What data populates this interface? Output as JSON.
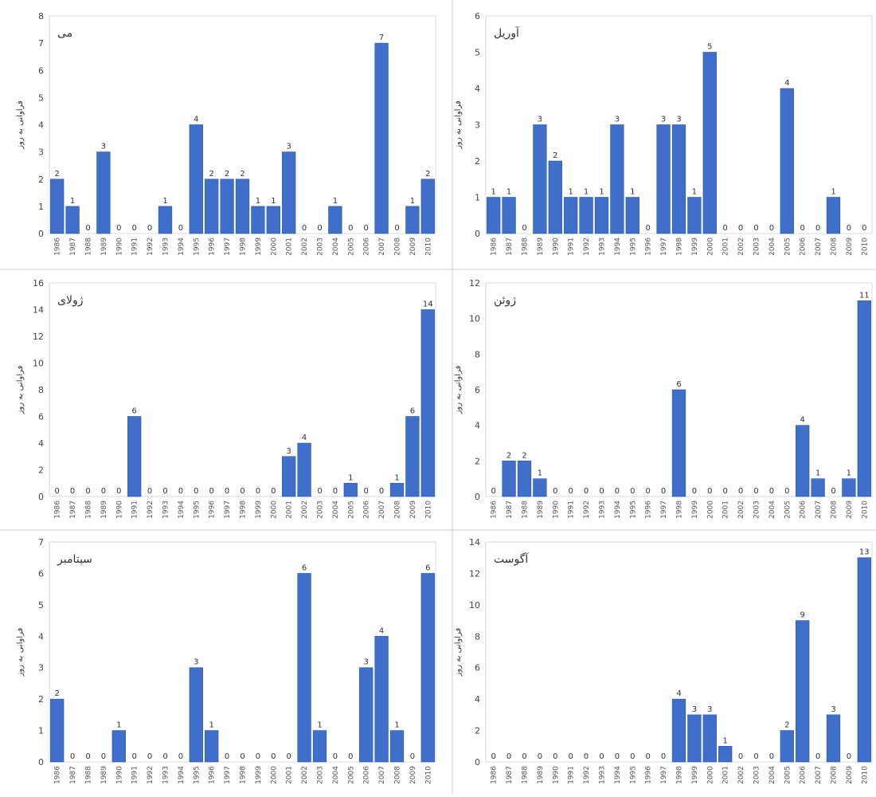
{
  "chart_data": [
    {
      "type": "bar",
      "title": "می",
      "ylabel": "فراوانی به روز",
      "ylim": [
        0,
        8
      ],
      "yticks": [
        0,
        1,
        2,
        3,
        4,
        5,
        6,
        7,
        8
      ],
      "categories": [
        "1986",
        "1987",
        "1988",
        "1989",
        "1990",
        "1991",
        "1992",
        "1993",
        "1994",
        "1995",
        "1996",
        "1997",
        "1998",
        "1999",
        "2000",
        "2001",
        "2002",
        "2003",
        "2004",
        "2005",
        "2006",
        "2007",
        "2008",
        "2009",
        "2010"
      ],
      "values": [
        2,
        1,
        0,
        3,
        0,
        0,
        0,
        1,
        0,
        4,
        2,
        2,
        2,
        1,
        1,
        3,
        0,
        0,
        1,
        0,
        0,
        7,
        0,
        1,
        2
      ],
      "grid": false,
      "bar_color": "#3f6fca"
    },
    {
      "type": "bar",
      "title": "آوریل",
      "ylabel": "فراوانی به روز",
      "ylim": [
        0,
        6
      ],
      "yticks": [
        0,
        1,
        2,
        3,
        4,
        5,
        6
      ],
      "categories": [
        "1986",
        "1987",
        "1988",
        "1989",
        "1990",
        "1991",
        "1992",
        "1993",
        "1994",
        "1995",
        "1996",
        "1997",
        "1998",
        "1999",
        "2000",
        "2001",
        "2002",
        "2003",
        "2004",
        "2005",
        "2006",
        "2007",
        "2008",
        "2009",
        "2010"
      ],
      "values": [
        1,
        1,
        0,
        3,
        2,
        1,
        1,
        1,
        3,
        1,
        0,
        3,
        3,
        1,
        5,
        0,
        0,
        0,
        0,
        4,
        0,
        0,
        1,
        0,
        0
      ],
      "grid": false,
      "bar_color": "#3f6fca"
    },
    {
      "type": "bar",
      "title": "ژولای",
      "ylabel": "فراوانی به روز",
      "ylim": [
        0,
        16
      ],
      "yticks": [
        0,
        2,
        4,
        6,
        8,
        10,
        12,
        14,
        16
      ],
      "categories": [
        "1986",
        "1987",
        "1988",
        "1989",
        "1990",
        "1991",
        "1992",
        "1993",
        "1994",
        "1995",
        "1996",
        "1997",
        "1998",
        "1999",
        "2000",
        "2001",
        "2002",
        "2003",
        "2004",
        "2005",
        "2006",
        "2007",
        "2008",
        "2009",
        "2010"
      ],
      "values": [
        0,
        0,
        0,
        0,
        0,
        6,
        0,
        0,
        0,
        0,
        0,
        0,
        0,
        0,
        0,
        3,
        4,
        0,
        0,
        1,
        0,
        0,
        1,
        6,
        14
      ],
      "grid": false,
      "bar_color": "#3f6fca"
    },
    {
      "type": "bar",
      "title": "ژوئن",
      "ylabel": "فراوانی به روز",
      "ylim": [
        0,
        12
      ],
      "yticks": [
        0,
        2,
        4,
        6,
        8,
        10,
        12
      ],
      "categories": [
        "1986",
        "1987",
        "1988",
        "1989",
        "1990",
        "1991",
        "1992",
        "1993",
        "1994",
        "1995",
        "1996",
        "1997",
        "1998",
        "1999",
        "2000",
        "2001",
        "2002",
        "2003",
        "2004",
        "2005",
        "2006",
        "2007",
        "2008",
        "2009",
        "2010"
      ],
      "values": [
        0,
        2,
        2,
        1,
        0,
        0,
        0,
        0,
        0,
        0,
        0,
        0,
        6,
        0,
        0,
        0,
        0,
        0,
        0,
        0,
        4,
        1,
        0,
        1,
        11
      ],
      "grid": false,
      "bar_color": "#3f6fca"
    },
    {
      "type": "bar",
      "title": "سپتامبر",
      "ylabel": "فراوانی به روز",
      "ylim": [
        0,
        7
      ],
      "yticks": [
        0,
        1,
        2,
        3,
        4,
        5,
        6,
        7
      ],
      "categories": [
        "1986",
        "1987",
        "1988",
        "1989",
        "1990",
        "1991",
        "1992",
        "1993",
        "1994",
        "1995",
        "1996",
        "1997",
        "1998",
        "1999",
        "2000",
        "2001",
        "2002",
        "2003",
        "2004",
        "2005",
        "2006",
        "2007",
        "2008",
        "2009",
        "2010"
      ],
      "values": [
        2,
        0,
        0,
        0,
        1,
        0,
        0,
        0,
        0,
        3,
        1,
        0,
        0,
        0,
        0,
        0,
        6,
        1,
        0,
        0,
        3,
        4,
        1,
        0,
        6
      ],
      "grid": false,
      "bar_color": "#3f6fca"
    },
    {
      "type": "bar",
      "title": "آگوست",
      "ylabel": "فراوانی به روز",
      "ylim": [
        0,
        14
      ],
      "yticks": [
        0,
        2,
        4,
        6,
        8,
        10,
        12,
        14
      ],
      "categories": [
        "1986",
        "1987",
        "1988",
        "1989",
        "1990",
        "1991",
        "1992",
        "1993",
        "1994",
        "1995",
        "1996",
        "1997",
        "1998",
        "1999",
        "2000",
        "2001",
        "2002",
        "2003",
        "2004",
        "2005",
        "2006",
        "2007",
        "2008",
        "2009",
        "2010"
      ],
      "values": [
        0,
        0,
        0,
        0,
        0,
        0,
        0,
        0,
        0,
        0,
        0,
        0,
        4,
        3,
        3,
        1,
        0,
        0,
        0,
        2,
        9,
        0,
        3,
        0,
        13
      ],
      "grid": false,
      "bar_color": "#3f6fca"
    }
  ]
}
